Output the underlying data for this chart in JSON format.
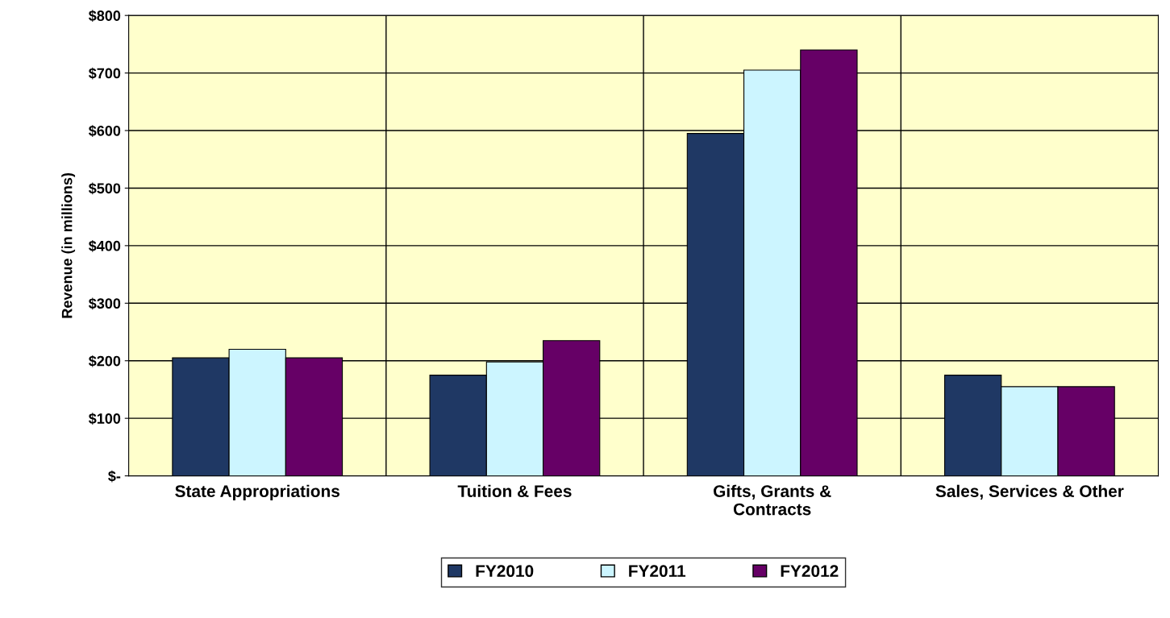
{
  "chart_data": {
    "type": "bar",
    "ylabel": "Revenue (in millions)",
    "categories": [
      "State Appropriations",
      "Tuition & Fees",
      "Gifts, Grants &\nContracts",
      "Sales, Services & Other"
    ],
    "series": [
      {
        "name": "FY2010",
        "color": "#1f3864",
        "values": [
          205,
          175,
          595,
          175
        ]
      },
      {
        "name": "FY2011",
        "color": "#ccf5ff",
        "values": [
          220,
          198,
          705,
          155
        ]
      },
      {
        "name": "FY2012",
        "color": "#660066",
        "values": [
          205,
          235,
          740,
          155
        ]
      }
    ],
    "ylim": [
      0,
      800
    ],
    "yticks": [
      {
        "value": 0,
        "label": "$-"
      },
      {
        "value": 100,
        "label": "$100"
      },
      {
        "value": 200,
        "label": "$200"
      },
      {
        "value": 300,
        "label": "$300"
      },
      {
        "value": 400,
        "label": "$400"
      },
      {
        "value": 500,
        "label": "$500"
      },
      {
        "value": 600,
        "label": "$600"
      },
      {
        "value": 700,
        "label": "$700"
      },
      {
        "value": 800,
        "label": "$800"
      }
    ],
    "grid": true,
    "legend": "bottom"
  }
}
